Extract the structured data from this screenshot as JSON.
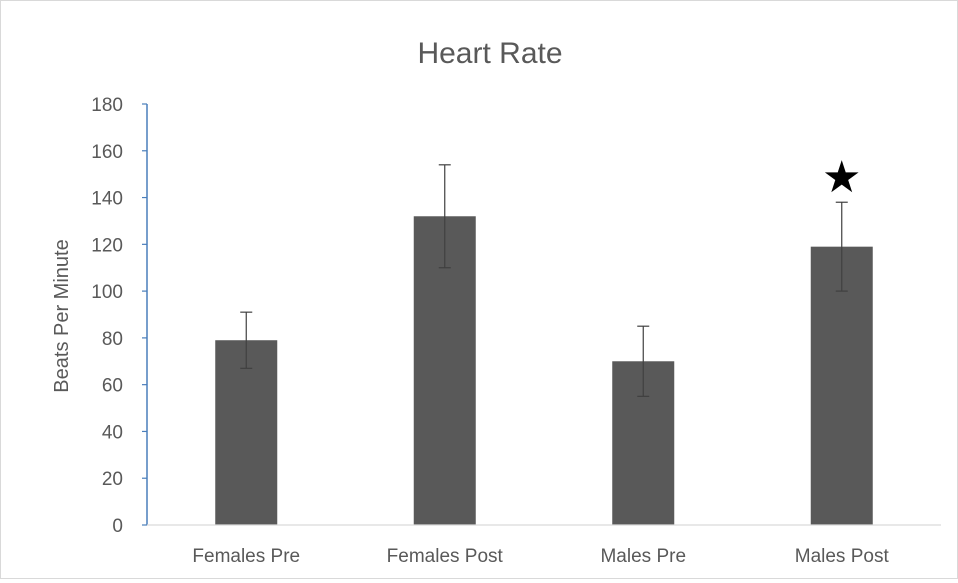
{
  "chart_data": {
    "type": "bar",
    "title": "Heart Rate",
    "xlabel": "",
    "ylabel": "Beats Per Minute",
    "categories": [
      "Females Pre",
      "Females Post",
      "Males Pre",
      "Males Post"
    ],
    "values": [
      79,
      132,
      70,
      119
    ],
    "error": [
      12,
      22,
      15,
      19
    ],
    "ylim": [
      0,
      180
    ],
    "yticks": [
      0,
      20,
      40,
      60,
      80,
      100,
      120,
      140,
      160,
      180
    ],
    "ytick_labels": [
      "0",
      "20",
      "40",
      "60",
      "80",
      "100",
      "120",
      "140",
      "160",
      "180"
    ],
    "grid": false,
    "legend": "none",
    "bar_color": "#595959",
    "axis_color": "#4a7ebb",
    "annotations": [
      {
        "category": "Males Post",
        "symbol": "★",
        "meaning": "significance marker"
      }
    ]
  }
}
